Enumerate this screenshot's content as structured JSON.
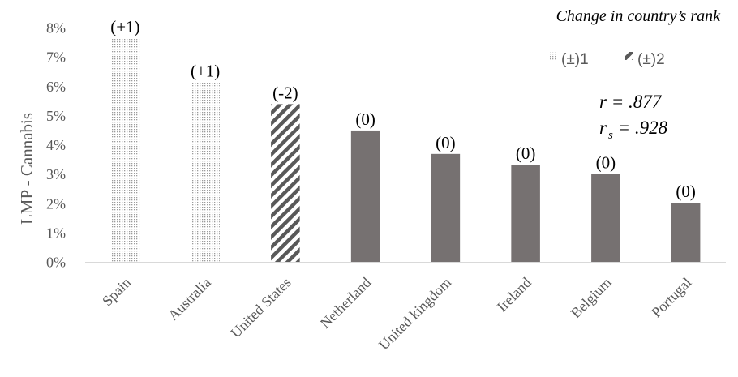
{
  "chart_data": {
    "type": "bar",
    "title": "",
    "xlabel": "",
    "ylabel": "LMP - Cannabis",
    "ylim": [
      0,
      8
    ],
    "yticks": [
      "0%",
      "1%",
      "2%",
      "3%",
      "4%",
      "5%",
      "6%",
      "7%",
      "8%"
    ],
    "grid": false,
    "categories": [
      "Spain",
      "Australia",
      "United States",
      "Netherland",
      "United kingdom",
      "Ireland",
      "Belgium",
      "Portugal"
    ],
    "values": [
      7.65,
      6.15,
      5.4,
      4.5,
      3.7,
      3.33,
      3.02,
      2.03
    ],
    "rank_change_labels": [
      "(+1)",
      "(+1)",
      "(-2)",
      "(0)",
      "(0)",
      "(0)",
      "(0)",
      "(0)"
    ],
    "patterns": [
      "dots",
      "dots",
      "stripes",
      "solid",
      "solid",
      "solid",
      "solid",
      "solid"
    ],
    "legend": {
      "title": "Change in country’s rank",
      "placement": "top-right",
      "items": [
        {
          "label": "(±)1",
          "pattern": "dots"
        },
        {
          "label": "(±)2",
          "pattern": "stripes"
        }
      ]
    },
    "stats": {
      "r_label": "r = .877",
      "rs_label": "r",
      "rs_sub": "s",
      "rs_value": " = .928"
    },
    "colors": {
      "solid": "#767171",
      "stripe": "#595959",
      "dot": "#9b9b9b",
      "axis": "#d9d9d9",
      "text": "#595959"
    }
  }
}
